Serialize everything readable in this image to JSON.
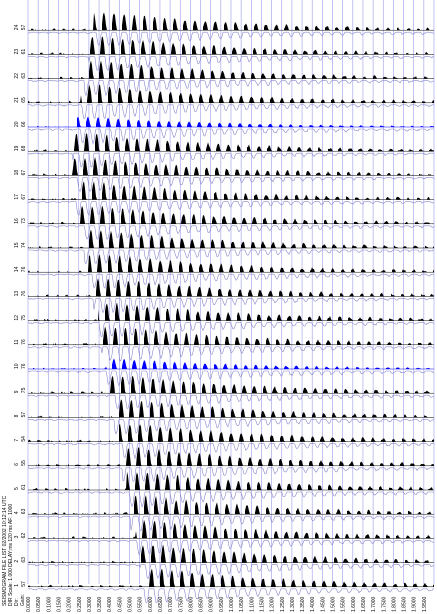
{
  "header": {
    "lines": [
      "SEISMOGRAM FILE LIST 02/2002 10:12:14 UTC",
      "DIR Scale: 1.000 DELAY:ms 120 ms  AF: 1000",
      "Dir:",
      "Gain:"
    ]
  },
  "traces": [
    {
      "num": "24",
      "sub": "57",
      "highlight": false
    },
    {
      "num": "23",
      "sub": "61",
      "highlight": false
    },
    {
      "num": "22",
      "sub": "63",
      "highlight": false
    },
    {
      "num": "21",
      "sub": "65",
      "highlight": false
    },
    {
      "num": "20",
      "sub": "66",
      "highlight": true
    },
    {
      "num": "19",
      "sub": "68",
      "highlight": false
    },
    {
      "num": "18",
      "sub": "67",
      "highlight": false
    },
    {
      "num": "17",
      "sub": "67",
      "highlight": false
    },
    {
      "num": "16",
      "sub": "73",
      "highlight": false
    },
    {
      "num": "15",
      "sub": "74",
      "highlight": false
    },
    {
      "num": "14",
      "sub": "76",
      "highlight": false
    },
    {
      "num": "13",
      "sub": "76",
      "highlight": false
    },
    {
      "num": "12",
      "sub": "75",
      "highlight": false
    },
    {
      "num": "11",
      "sub": "76",
      "highlight": false
    },
    {
      "num": "10",
      "sub": "76",
      "highlight": true
    },
    {
      "num": "9",
      "sub": "75",
      "highlight": false
    },
    {
      "num": "8",
      "sub": "57",
      "highlight": false
    },
    {
      "num": "7",
      "sub": "54",
      "highlight": false
    },
    {
      "num": "6",
      "sub": "55",
      "highlight": false
    },
    {
      "num": "5",
      "sub": "61",
      "highlight": false
    },
    {
      "num": "4",
      "sub": "63",
      "highlight": false
    },
    {
      "num": "3",
      "sub": "62",
      "highlight": false
    },
    {
      "num": "2",
      "sub": "63",
      "highlight": false
    },
    {
      "num": "1",
      "sub": "57",
      "highlight": false
    }
  ],
  "time_labels": [
    "0.0000",
    "0.0500",
    "0.1000",
    "0.1500",
    "0.2000",
    "0.2500",
    "0.3000",
    "0.3500",
    "0.4000",
    "0.4500",
    "0.5000",
    "0.5500",
    "0.6000",
    "0.6500",
    "0.7000",
    "0.7500",
    "0.8000",
    "0.8500",
    "0.9000",
    "0.9500",
    "1.0000",
    "1.0500",
    "1.1000",
    "1.1500",
    "1.2000",
    "1.2500",
    "1.3000",
    "1.3500",
    "1.4000",
    "1.4500",
    "1.5000",
    "1.5500",
    "1.6000",
    "1.6500",
    "1.7000",
    "1.7500",
    "1.8000",
    "1.8500",
    "1.9000",
    "1.9500"
  ],
  "colors": {
    "grid": "#9a9ae8",
    "trace_fill": "#000000",
    "highlight_fill": "#0000ff",
    "envelope": "#8888cc"
  }
}
